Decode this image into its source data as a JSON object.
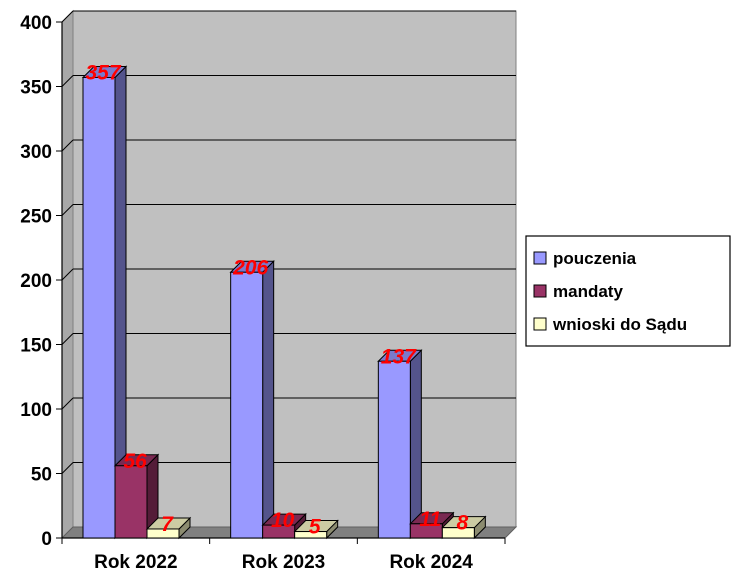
{
  "chart_data": {
    "type": "bar",
    "categories": [
      "Rok 2022",
      "Rok 2023",
      "Rok 2024"
    ],
    "series": [
      {
        "name": "pouczenia",
        "values": [
          357,
          206,
          137
        ],
        "color": "#9999FF"
      },
      {
        "name": "mandaty",
        "values": [
          56,
          10,
          11
        ],
        "color": "#993366"
      },
      {
        "name": "wnioski do Sądu",
        "values": [
          7,
          5,
          8
        ],
        "color": "#FFFFCC"
      }
    ],
    "data_labels": [
      [
        "357",
        "56",
        "7"
      ],
      [
        "206",
        "10",
        "5"
      ],
      [
        "137",
        "11",
        "8"
      ]
    ],
    "data_label_color": "#FF0000",
    "yticks": [
      "0",
      "50",
      "100",
      "150",
      "200",
      "250",
      "300",
      "350",
      "400"
    ],
    "ylim": [
      0,
      400
    ],
    "grid": true,
    "plot_background": "#C0C0C0",
    "legend_position": "right",
    "three_d": true
  }
}
